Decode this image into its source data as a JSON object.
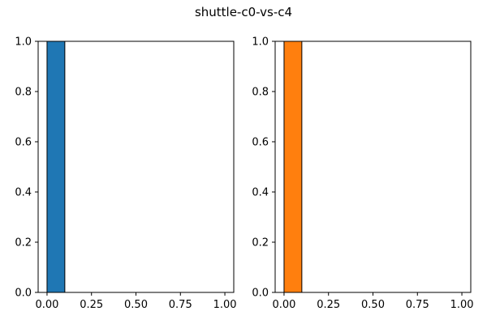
{
  "figure": {
    "suptitle": "shuttle-c0-vs-c4"
  },
  "chart_data": [
    {
      "type": "bar",
      "x": [
        0.0
      ],
      "bin_width": 0.1,
      "values": [
        1.0
      ],
      "color": "#1f77b4",
      "xlim": [
        -0.05,
        1.05
      ],
      "ylim": [
        0.0,
        1.0
      ],
      "xticks": [
        "0.00",
        "0.25",
        "0.50",
        "0.75",
        "1.00"
      ],
      "yticks": [
        "0.0",
        "0.2",
        "0.4",
        "0.6",
        "0.8",
        "1.0"
      ],
      "grid": false
    },
    {
      "type": "bar",
      "x": [
        0.0
      ],
      "bin_width": 0.1,
      "values": [
        1.0
      ],
      "color": "#ff7f0e",
      "xlim": [
        -0.05,
        1.05
      ],
      "ylim": [
        0.0,
        1.0
      ],
      "xticks": [
        "0.00",
        "0.25",
        "0.50",
        "0.75",
        "1.00"
      ],
      "yticks": [
        "0.0",
        "0.2",
        "0.4",
        "0.6",
        "0.8",
        "1.0"
      ],
      "grid": false
    }
  ]
}
